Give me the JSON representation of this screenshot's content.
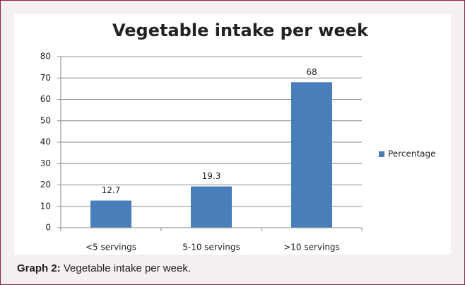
{
  "chart_data": {
    "type": "bar",
    "title": "Vegetable intake per week",
    "categories": [
      "<5 servings",
      "5-10 servings",
      ">10 servings"
    ],
    "series": [
      {
        "name": "Percentage",
        "color": "#4a7ebb",
        "values": [
          12.7,
          19.3,
          68
        ]
      }
    ],
    "ylim": [
      0,
      80
    ],
    "yticks": [
      0,
      10,
      20,
      30,
      40,
      50,
      60,
      70,
      80
    ],
    "grid": true,
    "legend": "right"
  },
  "caption": {
    "label": "Graph 2:",
    "text": "Vegetable intake per week."
  }
}
